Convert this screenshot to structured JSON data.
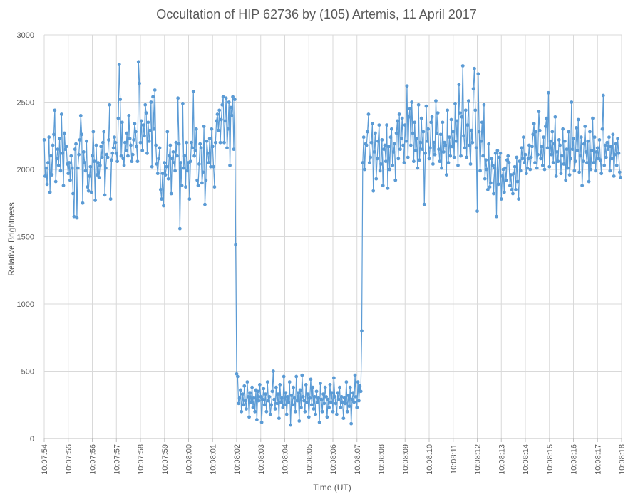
{
  "chart_data": {
    "type": "line",
    "title": "Occultation of HIP 62736 by (105) Artemis, 11 April 2017",
    "xlabel": "Time (UT)",
    "ylabel": "Relative Brightness",
    "ylim": [
      0,
      3000
    ],
    "yticks": [
      0,
      500,
      1000,
      1500,
      2000,
      2500,
      3000
    ],
    "xticks": [
      "10:07:54",
      "10:07:55",
      "10:07:56",
      "10:07:57",
      "10:07:58",
      "10:07:59",
      "10:08:00",
      "10:08:01",
      "10:08:02",
      "10:08:03",
      "10:08:04",
      "10:08:05",
      "10:08:06",
      "10:08:07",
      "10:08:08",
      "10:08:09",
      "10:08:10",
      "10:08:11",
      "10:08:12",
      "10:08:13",
      "10:08:14",
      "10:08:15",
      "10:08:16",
      "10:08:17",
      "10:08:18"
    ],
    "grid": "vertical and horizontal gridlines",
    "legend": "none",
    "series": [
      {
        "color": "#5b9bd5",
        "x_start_seconds": 0,
        "x_step_seconds": 0.04,
        "x_origin": "10:07:54",
        "values": [
          2220,
          1950,
          2010,
          1890,
          2050,
          2240,
          1830,
          2100,
          1960,
          2180,
          2260,
          2440,
          1910,
          2080,
          2150,
          2030,
          2230,
          1990,
          2410,
          2120,
          1880,
          2270,
          2150,
          2170,
          2040,
          1970,
          2050,
          1920,
          2100,
          2010,
          1820,
          1650,
          2150,
          2190,
          1640,
          2010,
          2110,
          2220,
          2400,
          2260,
          1750,
          2130,
          2050,
          1990,
          2210,
          1870,
          1840,
          1950,
          2020,
          1830,
          2100,
          2280,
          2060,
          1770,
          2180,
          1960,
          2050,
          1940,
          2030,
          2170,
          2090,
          2200,
          2280,
          1810,
          2010,
          2110,
          2090,
          2220,
          2480,
          1780,
          2070,
          2120,
          2160,
          2240,
          2200,
          2120,
          2060,
          2380,
          2780,
          2520,
          2100,
          2350,
          2080,
          2030,
          2200,
          2140,
          2270,
          2100,
          2400,
          2230,
          2180,
          2060,
          2110,
          2220,
          2340,
          2280,
          2170,
          2060,
          2800,
          2640,
          2200,
          2360,
          2140,
          2330,
          2250,
          2480,
          2420,
          2120,
          2350,
          2210,
          2290,
          2500,
          2020,
          2540,
          2300,
          2590,
          2180,
          2040,
          1970,
          2080,
          2160,
          1850,
          1780,
          1970,
          1730,
          2050,
          1960,
          2020,
          2280,
          1930,
          2100,
          2180,
          1820,
          2080,
          2130,
          2050,
          1990,
          2200,
          2100,
          2530,
          2190,
          1560,
          2050,
          1880,
          2490,
          2010,
          2100,
          1870,
          2200,
          1990,
          2050,
          1780,
          2060,
          2200,
          2160,
          2580,
          2100,
          2140,
          2300,
          1920,
          1880,
          2040,
          2190,
          2160,
          1900,
          1980,
          2320,
          1740,
          1920,
          2210,
          2120,
          2050,
          2230,
          2020,
          2300,
          2170,
          2020,
          1870,
          2200,
          2360,
          2410,
          2290,
          2440,
          2200,
          2370,
          2480,
          2540,
          2200,
          2360,
          2530,
          2160,
          2300,
          2500,
          2030,
          2460,
          2400,
          2540,
          2150,
          2520,
          1440,
          480,
          460,
          260,
          300,
          360,
          200,
          330,
          250,
          390,
          280,
          220,
          420,
          310,
          160,
          340,
          270,
          380,
          230,
          300,
          200,
          360,
          140,
          350,
          280,
          400,
          310,
          120,
          290,
          370,
          250,
          330,
          200,
          420,
          280,
          310,
          180,
          250,
          350,
          500,
          290,
          220,
          380,
          260,
          330,
          150,
          400,
          270,
          300,
          230,
          460,
          250,
          340,
          180,
          310,
          270,
          420,
          100,
          320,
          250,
          380,
          300,
          200,
          460,
          280,
          340,
          130,
          360,
          230,
          470,
          310,
          280,
          200,
          400,
          270,
          330,
          160,
          300,
          440,
          250,
          380,
          220,
          310,
          180,
          350,
          270,
          300,
          120,
          410,
          290,
          200,
          330,
          260,
          380,
          310,
          160,
          290,
          230,
          400,
          270,
          340,
          200,
          450,
          310,
          260,
          180,
          340,
          290,
          380,
          230,
          310,
          270,
          150,
          300,
          260,
          420,
          200,
          320,
          240,
          380,
          110,
          290,
          340,
          270,
          470,
          310,
          230,
          420,
          280,
          390,
          350,
          800,
          2050,
          2240,
          2000,
          2190,
          2180,
          2280,
          2410,
          2050,
          2090,
          2200,
          2340,
          1840,
          2130,
          2270,
          1930,
          2080,
          2210,
          2330,
          1990,
          2040,
          2220,
          1880,
          2150,
          2180,
          2060,
          2330,
          1860,
          2170,
          2000,
          2240,
          2300,
          2030,
          2130,
          2190,
          1920,
          2270,
          2360,
          2080,
          2410,
          2150,
          2230,
          2380,
          2180,
          2050,
          2330,
          2210,
          2620,
          2090,
          2390,
          2450,
          2180,
          2500,
          2270,
          2060,
          2350,
          2140,
          2230,
          2010,
          2480,
          2070,
          2200,
          2380,
          2150,
          2280,
          1740,
          2120,
          2470,
          2210,
          2300,
          2080,
          2160,
          2350,
          2390,
          2040,
          2200,
          2110,
          2510,
          2270,
          2420,
          2150,
          2060,
          2260,
          2010,
          2350,
          2130,
          2200,
          2180,
          1960,
          2440,
          2050,
          2240,
          2100,
          2370,
          2170,
          2280,
          2090,
          2490,
          2210,
          2360,
          2030,
          2630,
          2420,
          2100,
          2390,
          2770,
          2250,
          2160,
          2440,
          2090,
          2330,
          2510,
          2180,
          2040,
          2290,
          2200,
          2600,
          2750,
          2440,
          2160,
          1690,
          2710,
          2280,
          1990,
          2210,
          2350,
          2100,
          2480,
          1930,
          2070,
          2000,
          1850,
          2190,
          1870,
          1900,
          2080,
          2030,
          1820,
          2010,
          2120,
          1650,
          2140,
          1890,
          2090,
          2120,
          1780,
          1950,
          2000,
          1830,
          2010,
          1920,
          2070,
          2100,
          2050,
          1880,
          1960,
          1850,
          1820,
          1970,
          2020,
          1850,
          2090,
          1910,
          1780,
          2060,
          1990,
          2160,
          2080,
          2240,
          2050,
          2110,
          1970,
          2010,
          2080,
          2180,
          2000,
          2090,
          2170,
          2260,
          2340,
          2050,
          2280,
          2010,
          2110,
          2430,
          2290,
          2080,
          2170,
          2030,
          2240,
          2000,
          2320,
          2380,
          2160,
          2570,
          2020,
          2210,
          2110,
          2280,
          2050,
          2190,
          2390,
          1950,
          2130,
          2060,
          2220,
          2180,
          1970,
          2100,
          2300,
          2040,
          2210,
          1920,
          2150,
          2010,
          2280,
          1960,
          2080,
          2500,
          2150,
          2230,
          1990,
          2060,
          2310,
          2140,
          2370,
          1980,
          2100,
          2240,
          1880,
          2060,
          2190,
          2320,
          2130,
          2050,
          2210,
          1910,
          2280,
          2000,
          2140,
          2380,
          2050,
          2240,
          1990,
          2130,
          2160,
          2080,
          2220,
          2070,
          1970,
          2300,
          2550,
          2030,
          2180,
          2090,
          2200,
          2150,
          2240,
          1990,
          2170,
          2080,
          2260,
          1950,
          2110,
          2190,
          2030,
          2230,
          2120,
          1980,
          1940
        ]
      }
    ]
  }
}
